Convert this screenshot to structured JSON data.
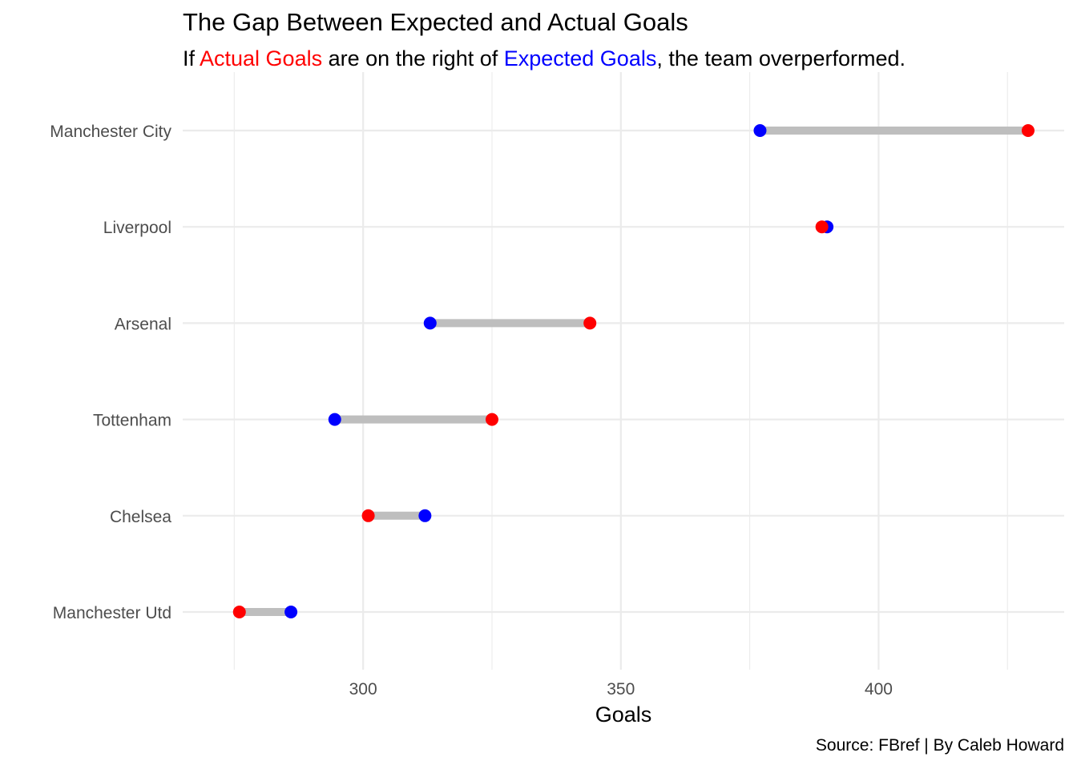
{
  "title": "The Gap Between Expected and Actual Goals",
  "subtitle": {
    "prefix": "If ",
    "actual_label": "Actual Goals",
    "middle": " are on the right of ",
    "expected_label": "Expected Goals",
    "suffix": ", the team overperformed."
  },
  "caption": "Source: FBref | By Caleb Howard",
  "colors": {
    "actual": "#ff0000",
    "expected": "#0000ff",
    "segment": "#bebebe",
    "grid": "#ebebeb",
    "tick_text": "#4d4d4d"
  },
  "chart_data": {
    "type": "dumbbell",
    "title": "The Gap Between Expected and Actual Goals",
    "xlabel": "Goals",
    "ylabel": "",
    "xlim": [
      265,
      436
    ],
    "x_ticks": [
      300,
      350,
      400
    ],
    "categories": [
      "Manchester City",
      "Liverpool",
      "Arsenal",
      "Tottenham",
      "Chelsea",
      "Manchester Utd"
    ],
    "series": [
      {
        "name": "Expected Goals",
        "values": [
          377,
          390,
          313,
          294.5,
          312,
          286
        ]
      },
      {
        "name": "Actual Goals",
        "values": [
          429,
          389,
          344,
          325,
          301,
          276
        ]
      }
    ],
    "grid": true,
    "legend": "none"
  }
}
